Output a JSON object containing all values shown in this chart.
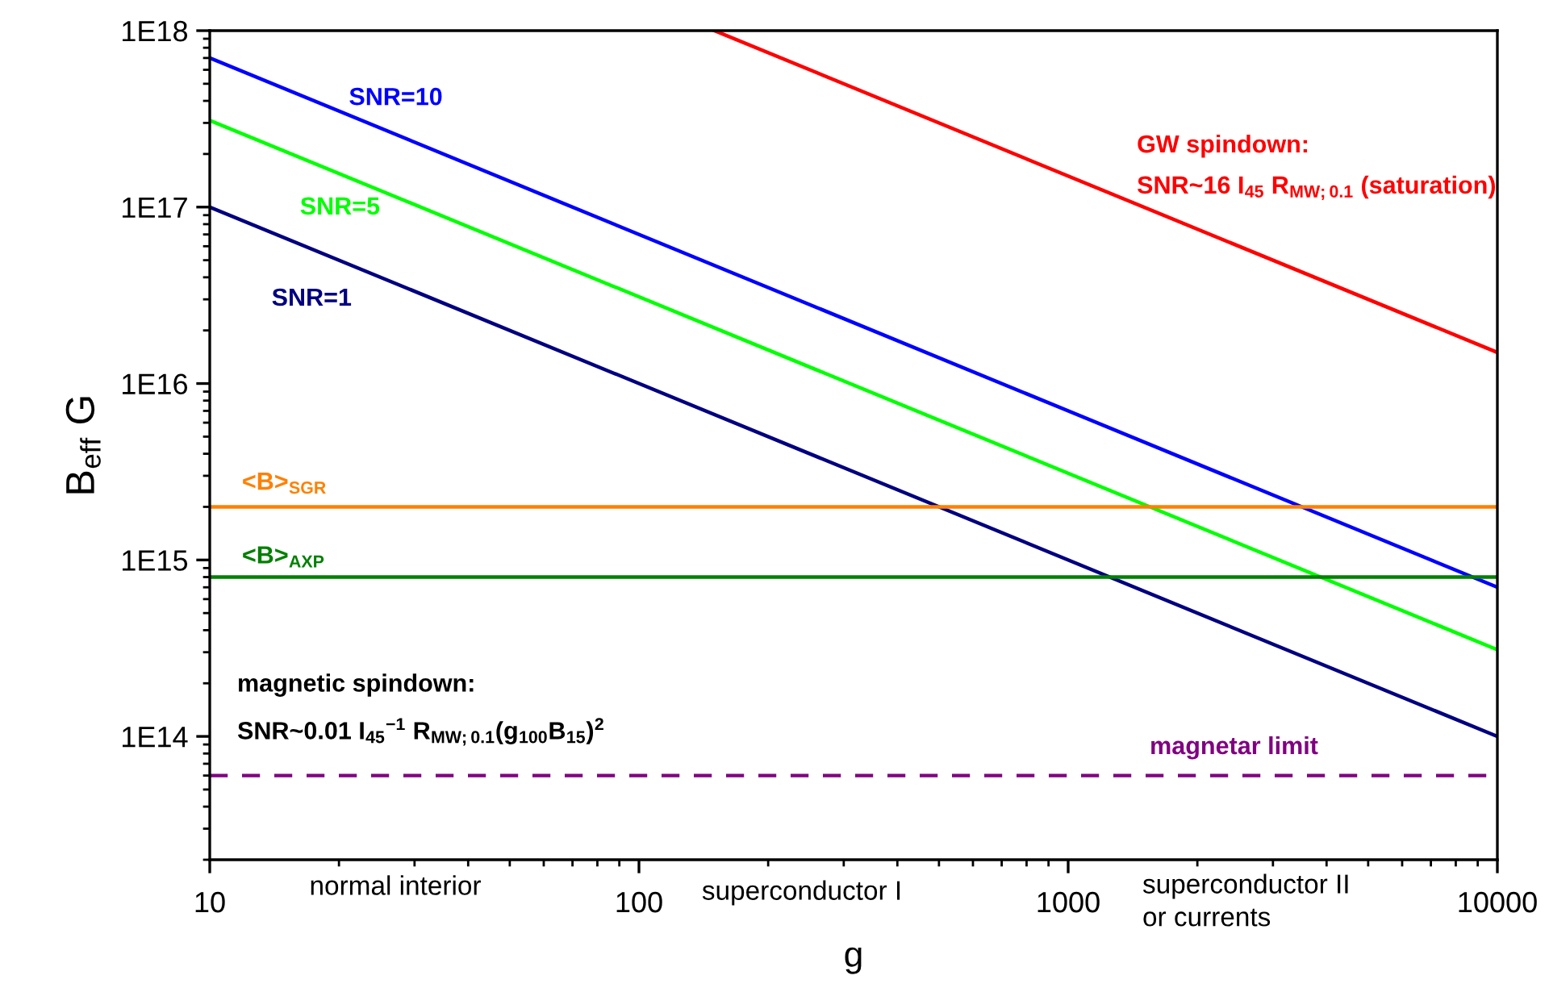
{
  "chart_data": {
    "type": "line",
    "xlabel": "g",
    "ylabel": "B$_{eff}$ G",
    "log": "xy",
    "grid": false,
    "legend": false,
    "marker": "none",
    "line_style": "solid",
    "xlim": [
      10,
      10000
    ],
    "xticks": [
      10,
      100,
      1000,
      10000
    ],
    "ylim": [
      20000000000000.0,
      1e+18
    ],
    "yticks": [
      {
        "value": 100000000000000.0,
        "label": "1E14"
      },
      {
        "value": 1000000000000000.0,
        "label": "1E15"
      },
      {
        "value": 1e+16,
        "label": "1E16"
      },
      {
        "value": 1e+17,
        "label": "1E17"
      },
      {
        "value": 1e+18,
        "label": "1E18"
      }
    ],
    "series": [
      {
        "name": "GW spindown:\nSNR~16 I$_{45}$ R$_{MW;0.1}$ (saturation)",
        "color": "#ff0000",
        "x": [
          150,
          10000
        ],
        "values": [
          1e+18,
          1.5e+16
        ]
      },
      {
        "name": "SNR=10",
        "color": "#0000ff",
        "x": [
          10,
          10000
        ],
        "values": [
          7e+17,
          700000000000000.0
        ]
      },
      {
        "name": "SNR=5",
        "color": "#00ff00",
        "x": [
          10,
          10000
        ],
        "values": [
          3.1e+17,
          310000000000000.0
        ]
      },
      {
        "name": "SNR=1",
        "color": "#000080",
        "x": [
          10,
          10000
        ],
        "values": [
          1e+17,
          100000000000000.0
        ]
      }
    ],
    "ref_lines": [
      {
        "axis": "y",
        "value": 2000000000000000.0,
        "label": "<B>$_{SGR}$",
        "color": "#ff8000",
        "line_style": "solid"
      },
      {
        "axis": "y",
        "value": 800000000000000.0,
        "label": "<B>$_{AXP}$",
        "color": "#008000",
        "line_style": "solid"
      },
      {
        "axis": "y",
        "value": 60000000000000.0,
        "label": "magnetar limit",
        "color": "#800080",
        "line_style": "dashed"
      }
    ],
    "annotations": [
      "magnetic spindown:\nSNR~0.01 I$_{45}$$^{−1}$ R$_{MW;0.1}$(g$_{100}$B$_{15}$)$^{2}$",
      "normal interior",
      "superconductor I",
      "superconductor II\nor currents"
    ]
  }
}
